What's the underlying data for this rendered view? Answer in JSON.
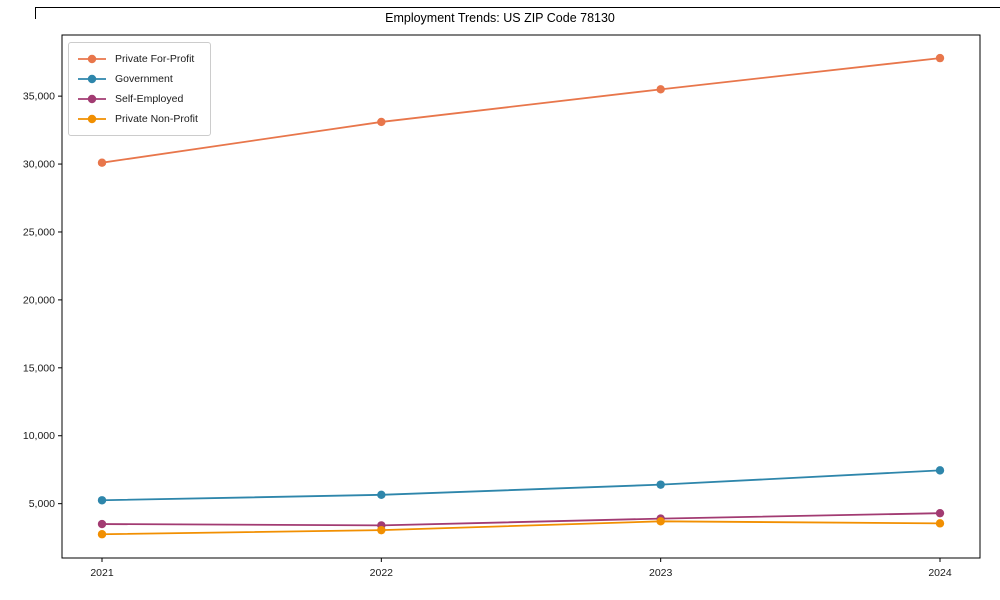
{
  "chart_data": {
    "type": "line",
    "title": "Employment Trends: US ZIP Code 78130",
    "categories": [
      "2021",
      "2022",
      "2023",
      "2024"
    ],
    "series": [
      {
        "name": "Private For-Profit",
        "color": "#E8764B",
        "values": [
          30100,
          33100,
          35500,
          37800
        ]
      },
      {
        "name": "Government",
        "color": "#2E86AB",
        "values": [
          5250,
          5650,
          6400,
          7450
        ]
      },
      {
        "name": "Self-Employed",
        "color": "#A23B72",
        "values": [
          3500,
          3400,
          3900,
          4300
        ]
      },
      {
        "name": "Private Non-Profit",
        "color": "#F18F01",
        "values": [
          2750,
          3050,
          3700,
          3550
        ]
      }
    ],
    "xlabel": "",
    "ylabel": "",
    "ylim": [
      1000,
      39500
    ],
    "yticks": [
      5000,
      10000,
      15000,
      20000,
      25000,
      30000,
      35000
    ],
    "ytick_labels": [
      "5,000",
      "10,000",
      "15,000",
      "20,000",
      "25,000",
      "30,000",
      "35,000"
    ],
    "grid": false,
    "legend_position": "upper left",
    "marker": "circle",
    "axis_color": "#000000",
    "background": "#ffffff"
  }
}
